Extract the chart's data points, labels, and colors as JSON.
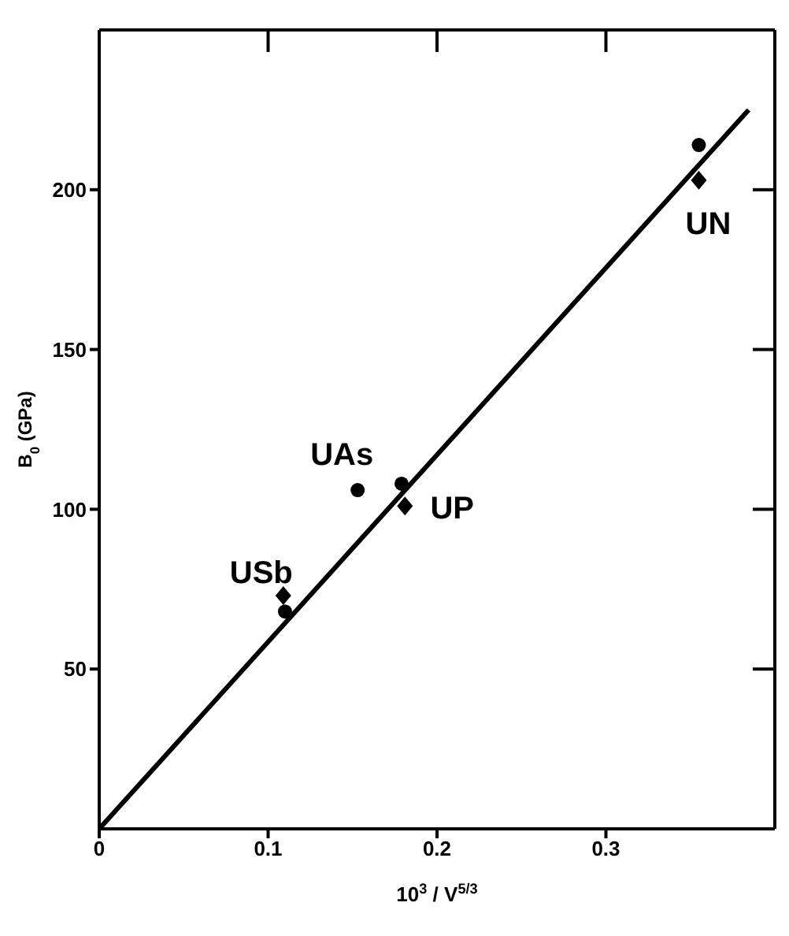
{
  "chart_data": {
    "type": "scatter",
    "xlabel": "10$^{3}$ / V$^{5/3}$",
    "ylabel": "B$_{0}$ (GPa)",
    "xlim": [
      0,
      0.4
    ],
    "ylim": [
      0,
      250
    ],
    "xticks": [
      0,
      0.1,
      0.2,
      0.3
    ],
    "yticks": [
      50,
      100,
      150,
      200
    ],
    "grid": false,
    "series": [
      {
        "marker": "circle",
        "color": "#000000",
        "x": [
          0.11,
          0.153,
          0.179,
          0.355
        ],
        "values": [
          68,
          106,
          108,
          214
        ]
      },
      {
        "marker": "diamond",
        "color": "#000000",
        "x": [
          0.109,
          0.181,
          0.355
        ],
        "values": [
          73,
          101,
          203
        ]
      },
      {
        "type": "line",
        "marker": "none",
        "color": "#000000",
        "x": [
          0,
          0.3845
        ],
        "values": [
          0,
          225
        ]
      }
    ],
    "annotations": [
      {
        "text": "USb",
        "x": 0.109,
        "y": 73
      },
      {
        "text": "UAs",
        "x": 0.153,
        "y": 106
      },
      {
        "text": "UP",
        "x": 0.181,
        "y": 101
      },
      {
        "text": "UN",
        "x": 0.355,
        "y": 203
      }
    ]
  }
}
